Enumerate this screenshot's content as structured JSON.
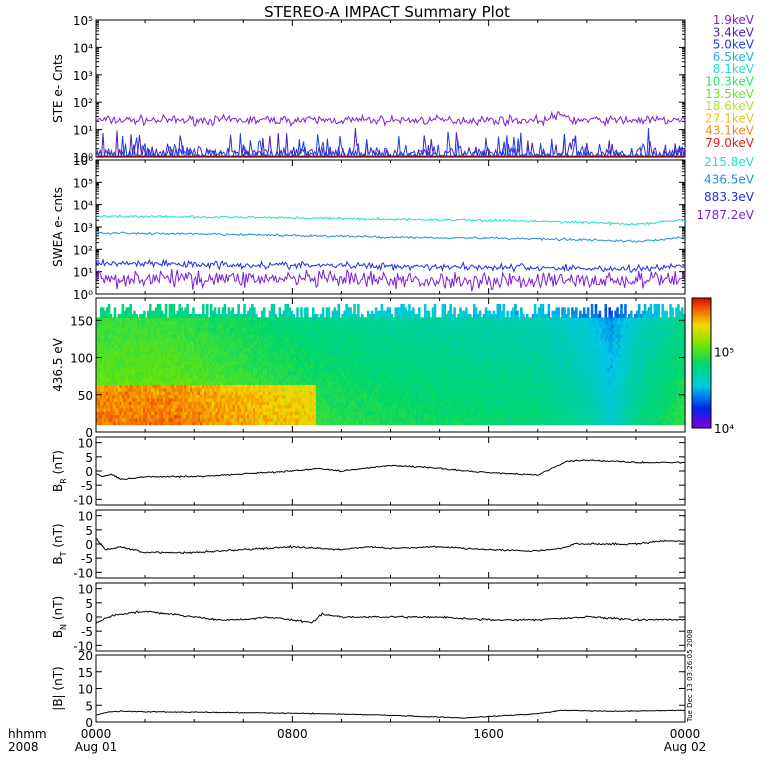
{
  "title": "STEREO-A IMPACT Summary Plot",
  "footer": {
    "x_caption_line1": "hhmm",
    "x_caption_line2": "2008",
    "x_ticks": [
      {
        "h": 0,
        "line1": "0000",
        "line2": "Aug 01"
      },
      {
        "h": 8,
        "line1": "0800",
        "line2": ""
      },
      {
        "h": 16,
        "line1": "1600",
        "line2": ""
      },
      {
        "h": 24,
        "line1": "0000",
        "line2": "Aug 02"
      }
    ],
    "timestamp": "Tue Dec 13 03:26:05 2008"
  },
  "colors": {
    "ste": [
      "#7f1fd6",
      "#4a1fb8",
      "#1f3fe0",
      "#1fb4e0",
      "#1fe0c8",
      "#2fe070",
      "#6ee02f",
      "#b8e02f",
      "#f0c020",
      "#f08a20",
      "#e0201f"
    ],
    "swea": [
      "#7f1fd6",
      "#1f2fe0",
      "#1f8fe0",
      "#1fe0c8"
    ],
    "trace": "#000000"
  },
  "chart_data": [
    {
      "type": "line",
      "ylabel": "STE e- Cnts",
      "yscale": "log",
      "ylim": [
        1,
        100000
      ],
      "yticks": [
        "10⁰",
        "10¹",
        "10²",
        "10³",
        "10⁴",
        "10⁵"
      ],
      "xlim_hours": [
        0,
        24
      ],
      "legend": "right",
      "series": [
        {
          "name": "1.9keV",
          "level": 22,
          "noise": 0.15
        },
        {
          "name": "3.4keV",
          "level": 1.2,
          "noise": 0.3
        },
        {
          "name": "5.0keV",
          "level": 1.1,
          "noise": 0.3
        },
        {
          "name": "6.5keV",
          "level": 1,
          "noise": 0
        },
        {
          "name": "8.1keV",
          "level": 1,
          "noise": 0
        },
        {
          "name": "10.3keV",
          "level": 1,
          "noise": 0
        },
        {
          "name": "13.5keV",
          "level": 1,
          "noise": 0
        },
        {
          "name": "18.6keV",
          "level": 1,
          "noise": 0
        },
        {
          "name": "27.1keV",
          "level": 1,
          "noise": 0
        },
        {
          "name": "43.1keV",
          "level": 1,
          "noise": 0
        },
        {
          "name": "79.0keV",
          "level": 1,
          "noise": 0
        }
      ]
    },
    {
      "type": "line",
      "ylabel": "SWEA e- cnts",
      "yscale": "log",
      "ylim": [
        1,
        1000000
      ],
      "yticks": [
        "10⁰",
        "10¹",
        "10²",
        "10³",
        "10⁴",
        "10⁵",
        "10⁶"
      ],
      "xlim_hours": [
        0,
        24
      ],
      "legend": "right",
      "series": [
        {
          "name": "1787.2eV",
          "x": [
            0,
            6,
            12,
            18,
            22,
            24
          ],
          "y": [
            5,
            5,
            4,
            4,
            4,
            5
          ],
          "noise": 0.35
        },
        {
          "name": "883.3eV",
          "x": [
            0,
            6,
            12,
            18,
            22,
            24
          ],
          "y": [
            25,
            20,
            18,
            15,
            13,
            18
          ],
          "noise": 0.15
        },
        {
          "name": "436.5eV",
          "x": [
            0,
            4,
            8,
            12,
            16,
            20,
            22,
            24
          ],
          "y": [
            550,
            480,
            420,
            350,
            320,
            270,
            220,
            330
          ],
          "noise": 0.05
        },
        {
          "name": "215.8eV",
          "x": [
            0,
            4,
            8,
            12,
            16,
            20,
            22,
            24
          ],
          "y": [
            3100,
            2800,
            2600,
            2200,
            2000,
            1600,
            1300,
            2000
          ],
          "noise": 0.05
        }
      ]
    },
    {
      "type": "heatmap",
      "ylabel": "436.5 eV",
      "ylim": [
        0,
        180
      ],
      "yticks": [
        0,
        50,
        100,
        150
      ],
      "xlim_hours": [
        0,
        24
      ],
      "colorbar": {
        "scale": "log",
        "range": [
          10000,
          500000
        ],
        "ticks": [
          "10⁴",
          "10⁵"
        ]
      },
      "intensity_profile": {
        "x": [
          0,
          3,
          6,
          9,
          12,
          15,
          18,
          20,
          21,
          22,
          24
        ],
        "level": [
          0.55,
          0.55,
          0.5,
          0.45,
          0.42,
          0.4,
          0.38,
          0.32,
          0.25,
          0.35,
          0.45
        ]
      }
    },
    {
      "type": "line",
      "ylabel": "B",
      "ysub": "R",
      "yunit": " (nT)",
      "ylim": [
        -12,
        12
      ],
      "yticks": [
        -10,
        -5,
        0,
        5,
        10
      ],
      "xlim_hours": [
        0,
        24
      ],
      "x": [
        0,
        0.3,
        0.6,
        1,
        2,
        4,
        6,
        8,
        9,
        10,
        11,
        12,
        13,
        14,
        15,
        16,
        17,
        18,
        18.6,
        19.2,
        20,
        21,
        22,
        23,
        24
      ],
      "y": [
        -1,
        -2,
        -1,
        -3,
        -2,
        -2,
        -1,
        0,
        1,
        0,
        1,
        2,
        1.5,
        1,
        0,
        -0.5,
        -1,
        -1.5,
        1,
        3.5,
        3.8,
        3.5,
        3,
        3,
        3
      ],
      "noise": 0.4
    },
    {
      "type": "line",
      "ylabel": "B",
      "ysub": "T",
      "yunit": " (nT)",
      "ylim": [
        -12,
        12
      ],
      "yticks": [
        -10,
        -5,
        0,
        5,
        10
      ],
      "xlim_hours": [
        0,
        24
      ],
      "x": [
        0,
        0.4,
        1,
        2,
        4,
        6,
        8,
        10,
        11,
        12,
        14,
        16,
        18,
        19,
        19.5,
        20,
        22,
        23,
        24
      ],
      "y": [
        2,
        -2,
        -1,
        -3,
        -3,
        -2,
        -1,
        -2,
        -1,
        -1.5,
        -1,
        -2,
        -2.5,
        -1.5,
        0,
        0,
        0,
        1,
        1
      ],
      "noise": 0.45
    },
    {
      "type": "line",
      "ylabel": "B",
      "ysub": "N",
      "yunit": " (nT)",
      "ylim": [
        -12,
        12
      ],
      "yticks": [
        -10,
        -5,
        0,
        5,
        10
      ],
      "xlim_hours": [
        0,
        24
      ],
      "x": [
        0,
        0.5,
        1,
        2,
        3,
        4,
        5,
        6,
        7,
        8,
        8.8,
        9.2,
        10,
        12,
        14,
        16,
        18,
        20,
        22,
        24
      ],
      "y": [
        -2,
        0,
        1,
        2,
        1,
        0,
        -1,
        -1,
        0,
        -1,
        -2,
        1,
        0,
        0,
        0,
        -1,
        -1,
        0,
        -1,
        -1
      ],
      "noise": 0.5
    },
    {
      "type": "line",
      "ylabel": "|B|",
      "ysub": "",
      "yunit": " (nT)",
      "ylim": [
        0,
        20
      ],
      "yticks": [
        0,
        5,
        10,
        15,
        20
      ],
      "xlim_hours": [
        0,
        24
      ],
      "x": [
        0,
        0.5,
        1,
        3,
        6,
        9,
        12,
        15,
        18,
        19,
        21,
        24
      ],
      "y": [
        2,
        3,
        3.2,
        3,
        2.8,
        2.5,
        2,
        1.2,
        2.5,
        3.5,
        3.2,
        3.5
      ],
      "noise": 0.2
    }
  ]
}
